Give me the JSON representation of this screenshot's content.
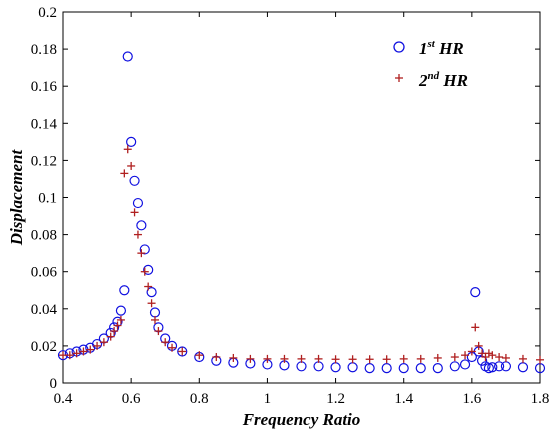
{
  "chart_data": {
    "type": "scatter",
    "xlabel": "Frequency Ratio",
    "ylabel": "Displacement",
    "xlim": [
      0.4,
      1.8
    ],
    "ylim": [
      0,
      0.2
    ],
    "xticks": [
      "0.4",
      "0.6",
      "0.8",
      "1",
      "1.2",
      "1.4",
      "1.6",
      "1.8"
    ],
    "yticks": [
      "0",
      "0.02",
      "0.04",
      "0.06",
      "0.08",
      "0.1",
      "0.12",
      "0.14",
      "0.16",
      "0.18",
      "0.2"
    ],
    "grid": false,
    "legend_position": "top-right",
    "series": [
      {
        "name": "1st HR",
        "label_main": "1",
        "label_sup": "st",
        "label_tail": " HR",
        "marker": "circle",
        "color": "#1010e0",
        "x": [
          0.4,
          0.42,
          0.44,
          0.46,
          0.48,
          0.5,
          0.52,
          0.54,
          0.55,
          0.56,
          0.57,
          0.58,
          0.59,
          0.6,
          0.61,
          0.62,
          0.63,
          0.64,
          0.65,
          0.66,
          0.67,
          0.68,
          0.7,
          0.72,
          0.75,
          0.8,
          0.85,
          0.9,
          0.95,
          1.0,
          1.05,
          1.1,
          1.15,
          1.2,
          1.25,
          1.3,
          1.35,
          1.4,
          1.45,
          1.5,
          1.55,
          1.58,
          1.6,
          1.61,
          1.62,
          1.63,
          1.64,
          1.65,
          1.66,
          1.68,
          1.7,
          1.75,
          1.8
        ],
        "values": [
          0.015,
          0.016,
          0.017,
          0.018,
          0.019,
          0.021,
          0.024,
          0.027,
          0.03,
          0.033,
          0.039,
          0.05,
          0.176,
          0.13,
          0.109,
          0.097,
          0.085,
          0.072,
          0.061,
          0.049,
          0.038,
          0.03,
          0.024,
          0.02,
          0.017,
          0.014,
          0.012,
          0.011,
          0.0105,
          0.01,
          0.0095,
          0.009,
          0.009,
          0.0085,
          0.0085,
          0.008,
          0.008,
          0.008,
          0.008,
          0.008,
          0.009,
          0.01,
          0.014,
          0.049,
          0.017,
          0.012,
          0.009,
          0.008,
          0.0085,
          0.009,
          0.009,
          0.0085,
          0.008
        ]
      },
      {
        "name": "2nd HR",
        "label_main": "2",
        "label_sup": "nd",
        "label_tail": " HR",
        "marker": "plus",
        "color": "#b02020",
        "x": [
          0.4,
          0.42,
          0.44,
          0.46,
          0.48,
          0.5,
          0.52,
          0.54,
          0.55,
          0.56,
          0.57,
          0.58,
          0.59,
          0.6,
          0.61,
          0.62,
          0.63,
          0.64,
          0.65,
          0.66,
          0.67,
          0.68,
          0.7,
          0.72,
          0.75,
          0.8,
          0.85,
          0.9,
          0.95,
          1.0,
          1.05,
          1.1,
          1.15,
          1.2,
          1.25,
          1.3,
          1.35,
          1.4,
          1.45,
          1.5,
          1.55,
          1.58,
          1.6,
          1.61,
          1.62,
          1.63,
          1.64,
          1.65,
          1.66,
          1.68,
          1.7,
          1.75,
          1.8
        ],
        "values": [
          0.015,
          0.015,
          0.016,
          0.017,
          0.018,
          0.02,
          0.022,
          0.025,
          0.028,
          0.031,
          0.034,
          0.113,
          0.126,
          0.117,
          0.092,
          0.08,
          0.07,
          0.06,
          0.052,
          0.043,
          0.034,
          0.028,
          0.022,
          0.019,
          0.017,
          0.015,
          0.014,
          0.0135,
          0.013,
          0.013,
          0.013,
          0.013,
          0.013,
          0.0128,
          0.0128,
          0.0128,
          0.0128,
          0.013,
          0.013,
          0.0135,
          0.014,
          0.015,
          0.017,
          0.03,
          0.02,
          0.016,
          0.014,
          0.016,
          0.015,
          0.014,
          0.0135,
          0.013,
          0.0125
        ]
      }
    ]
  }
}
